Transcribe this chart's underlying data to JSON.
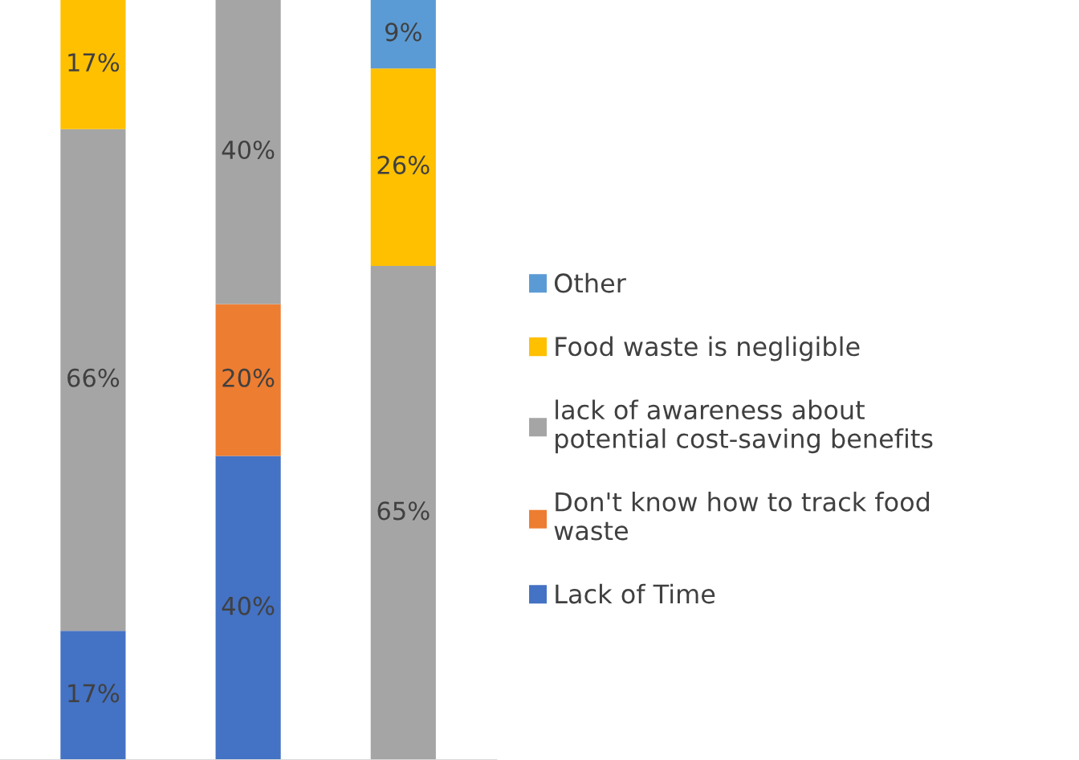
{
  "chart_data": {
    "type": "bar",
    "stacked": true,
    "categories": [
      null,
      null,
      null
    ],
    "series": [
      {
        "name": "Lack of Time",
        "color": "#4472c4",
        "values": [
          17,
          40,
          0
        ],
        "value_labels": [
          "17%",
          "40%",
          null
        ]
      },
      {
        "name": "Don't know how to track food waste",
        "color": "#ed7d31",
        "values": [
          0,
          20,
          0
        ],
        "value_labels": [
          null,
          "20%",
          null
        ]
      },
      {
        "name": "lack of awareness about potential cost-saving benefits",
        "color": "#a5a5a5",
        "values": [
          66,
          40,
          65
        ],
        "value_labels": [
          "66%",
          "40%",
          "65%"
        ]
      },
      {
        "name": "Food waste is negligible",
        "color": "#ffc000",
        "values": [
          17,
          0,
          26
        ],
        "value_labels": [
          "17%",
          null,
          "26%"
        ]
      },
      {
        "name": "Other",
        "color": "#5b9bd5",
        "values": [
          0,
          0,
          9
        ],
        "value_labels": [
          null,
          null,
          "9%"
        ]
      }
    ],
    "ylim": [
      0,
      100
    ],
    "legend": "right"
  }
}
